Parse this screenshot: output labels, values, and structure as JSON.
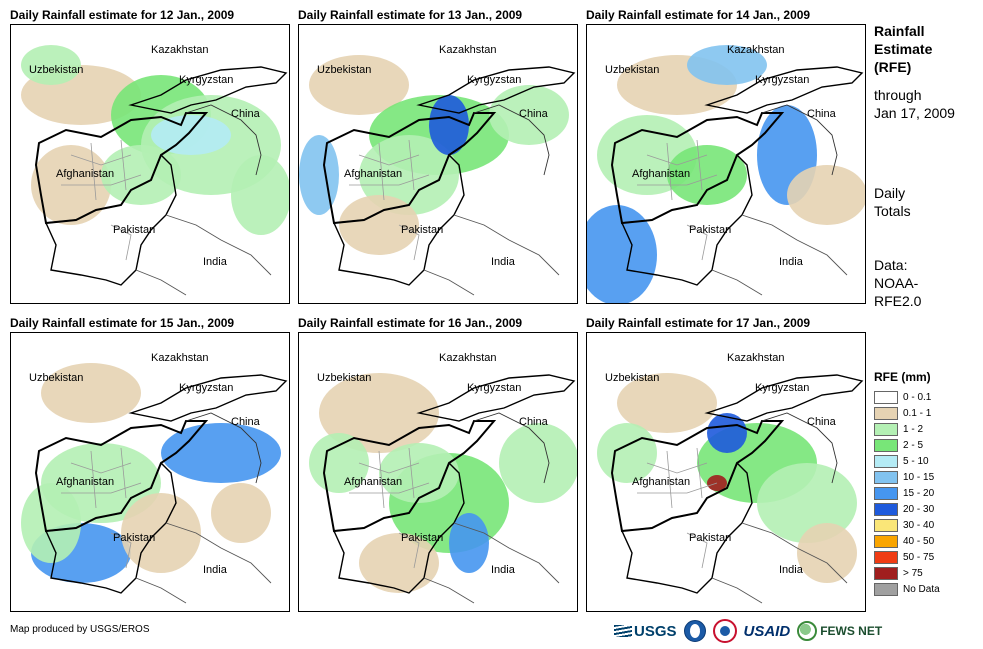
{
  "panels": [
    {
      "title": "Daily Rainfall estimate for 12 Jan., 2009"
    },
    {
      "title": "Daily Rainfall estimate for 13 Jan., 2009"
    },
    {
      "title": "Daily Rainfall estimate for 14 Jan., 2009"
    },
    {
      "title": "Daily Rainfall estimate for 15 Jan., 2009"
    },
    {
      "title": "Daily Rainfall estimate for 16 Jan., 2009"
    },
    {
      "title": "Daily Rainfall estimate for 17 Jan., 2009"
    }
  ],
  "map_labels": {
    "kazakhstan": "Kazakhstan",
    "uzbekistan": "Uzbekistan",
    "kyrgyzstan": "Kyrgyzstan",
    "china": "China",
    "afghanistan": "Afghanistan",
    "pakistan": "Pakistan",
    "india": "India"
  },
  "sidebar": {
    "title_lines": [
      "Rainfall",
      "Estimate",
      "(RFE)"
    ],
    "through_lines": [
      "through",
      "Jan 17, 2009"
    ],
    "daily_lines": [
      "Daily",
      "Totals"
    ],
    "data_lines": [
      "Data:",
      "NOAA-",
      "RFE2.0"
    ]
  },
  "legend": {
    "title": "RFE (mm)",
    "items": [
      {
        "label": "0 - 0.1",
        "color": "#ffffff"
      },
      {
        "label": "0.1 - 1",
        "color": "#e6d3b3"
      },
      {
        "label": "1 - 2",
        "color": "#b4f0b4"
      },
      {
        "label": "2 - 5",
        "color": "#78e678"
      },
      {
        "label": "5 - 10",
        "color": "#b4ebf5"
      },
      {
        "label": "10 - 15",
        "color": "#82c3f0"
      },
      {
        "label": "15 - 20",
        "color": "#4696f0"
      },
      {
        "label": "20 - 30",
        "color": "#1e5adc"
      },
      {
        "label": "30 - 40",
        "color": "#fae678"
      },
      {
        "label": "40 - 50",
        "color": "#faa500"
      },
      {
        "label": "50 - 75",
        "color": "#f03c14"
      },
      {
        "label": "> 75",
        "color": "#a01e1e"
      },
      {
        "label": "No Data",
        "color": "#a0a0a0"
      }
    ]
  },
  "credit": "Map produced by USGS/EROS",
  "logos": {
    "usgs": "USGS",
    "usaid": "USAID",
    "fews": "FEWS NET"
  }
}
